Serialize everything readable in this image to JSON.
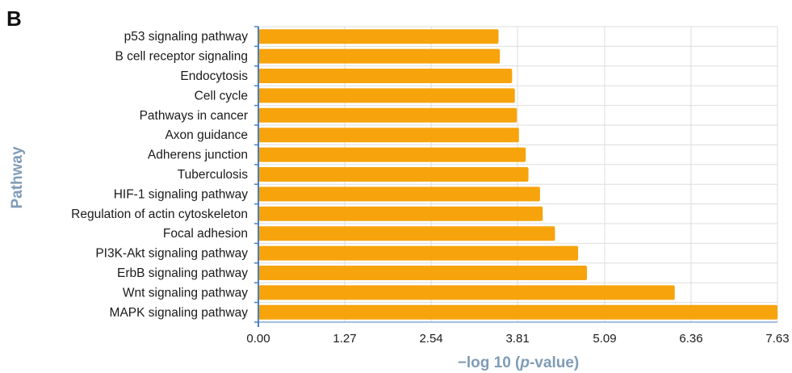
{
  "panel_label": "B",
  "chart_data": {
    "type": "bar",
    "orientation": "horizontal",
    "categories": [
      "p53 signaling pathway",
      "B cell receptor signaling",
      "Endocytosis",
      "Cell cycle",
      "Pathways in cancer",
      "Axon guidance",
      "Adherens junction",
      "Tuberculosis",
      "HIF-1 signaling pathway",
      "Regulation of actin cytoskeleton",
      "Focal adhesion",
      "PI3K-Akt signaling pathway",
      "ErbB signaling pathway",
      "Wnt signaling pathway",
      "MAPK signaling pathway"
    ],
    "values": [
      3.53,
      3.55,
      3.73,
      3.77,
      3.8,
      3.83,
      3.93,
      3.97,
      4.14,
      4.18,
      4.36,
      4.7,
      4.83,
      6.12,
      7.63
    ],
    "xlabel_prefix": "−log 10 (",
    "xlabel_italic": "p",
    "xlabel_suffix": "-value)",
    "ylabel": "Pathway",
    "xlim": [
      0,
      7.63
    ],
    "xticks": [
      "0.00",
      "1.27",
      "2.54",
      "3.81",
      "5.09",
      "6.36",
      "7.63"
    ],
    "xtick_values": [
      0,
      1.27,
      2.54,
      3.81,
      5.09,
      6.36,
      7.63
    ],
    "grid": true,
    "colors": {
      "bar": "#f7a30c",
      "grid": "#dddddd",
      "axis": "#4a7fc1",
      "title": "#7f9cb6"
    }
  }
}
